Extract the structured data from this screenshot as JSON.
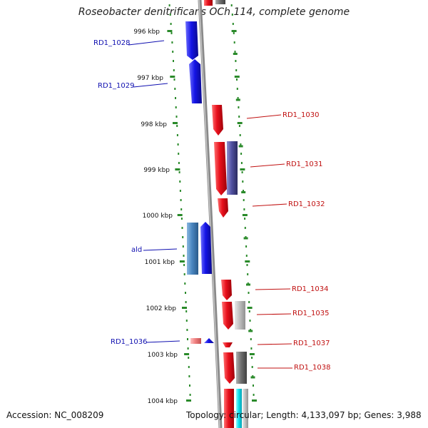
{
  "title": "Roseobacter denitrificans OCh 114, complete genome",
  "footer": {
    "accession": "Accession: NC_008209",
    "summary": "Topology: circular; Length: 4,133,097 bp; Genes: 3,988"
  },
  "colors": {
    "forward_gene": "#e8101c",
    "reverse_gene": "#1414e6",
    "reverse_gene_light": "#4a86c0",
    "gray_feature": "#707070",
    "light_gray_feature": "#c0c0c0",
    "cyan_feature": "#10e0f0",
    "purple_feature": "#5050a0",
    "pink_feature": "#f08080",
    "backbone": "#8a8a8a",
    "tick": "#2a8a2a",
    "label_left": "#1010b0",
    "label_right": "#c01010"
  },
  "ticks": [
    "996 kbp",
    "997 kbp",
    "998 kbp",
    "999 kbp",
    "1000 kbp",
    "1001 kbp",
    "1002 kbp",
    "1003 kbp",
    "1004 kbp"
  ],
  "labels_left": [
    "RD1_1028",
    "RD1_1029",
    "ald",
    "RD1_1036"
  ],
  "labels_right": [
    "RD1_1030",
    "RD1_1031",
    "RD1_1032",
    "RD1_1034",
    "RD1_1035",
    "RD1_1037",
    "RD1_1038"
  ]
}
